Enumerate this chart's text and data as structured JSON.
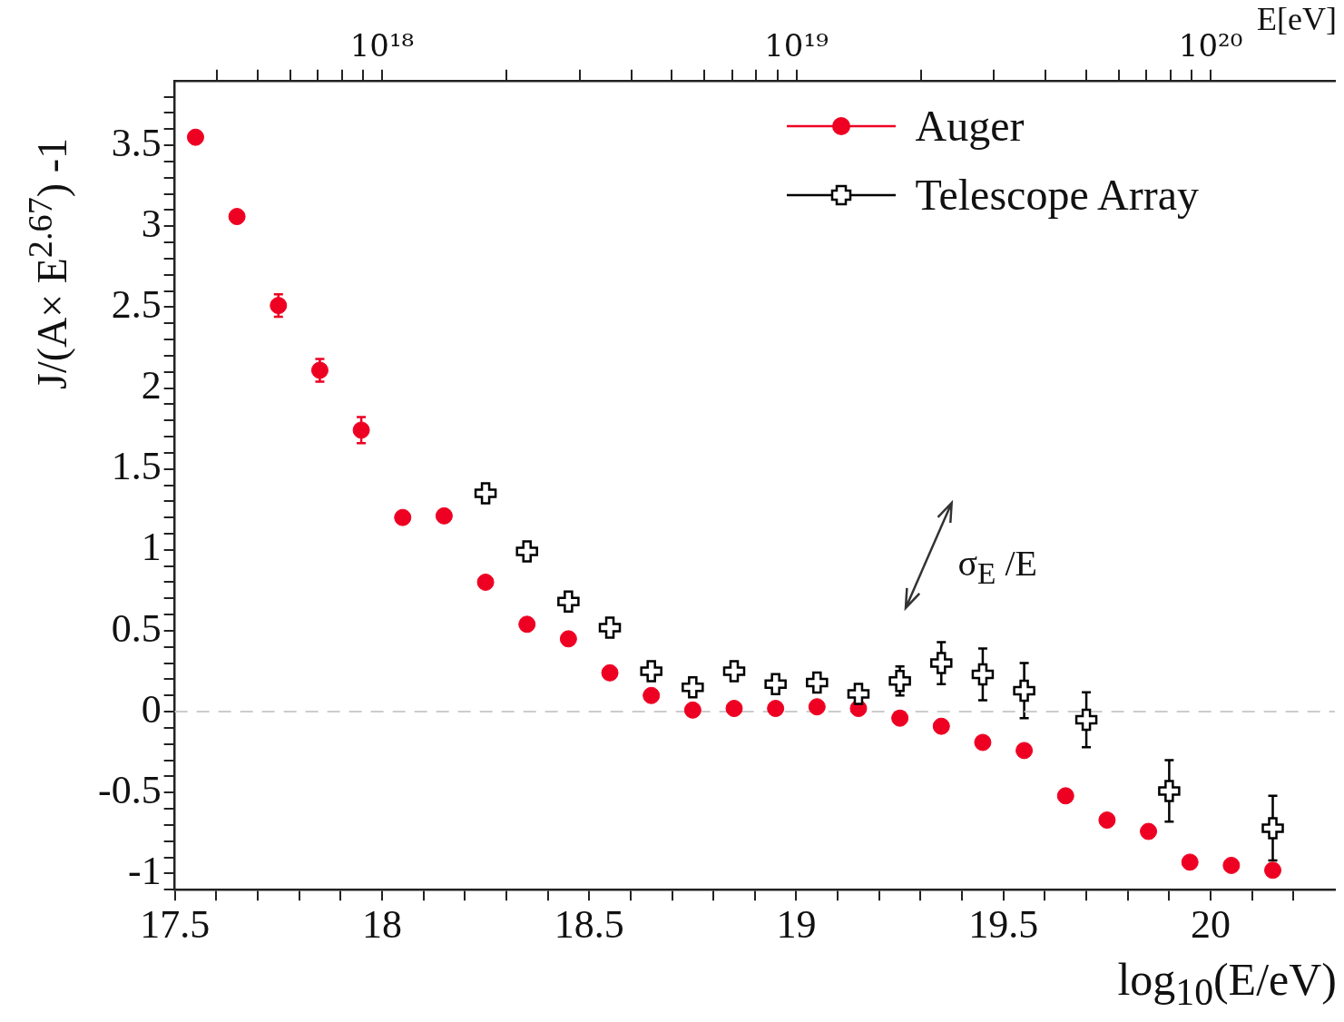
{
  "chart_data": {
    "type": "scatter",
    "xlabel": "log$_{10}$(E/eV)",
    "ylabel": "J/(A× E$^{2.67}$) -1",
    "x2label": "E[eV]",
    "xlim": [
      17.5,
      20.3
    ],
    "ylim": [
      -1.1,
      3.9
    ],
    "x2lim": [
      3.162e+17,
      1.995e+20
    ],
    "log": "x2",
    "xticks": [
      17.5,
      {
        "value": 17.6,
        "label": null
      },
      {
        "value": 17.7,
        "label": null
      },
      {
        "value": 17.8,
        "label": null
      },
      {
        "value": 17.9,
        "label": null
      },
      18,
      {
        "value": 18.1,
        "label": null
      },
      {
        "value": 18.2,
        "label": null
      },
      {
        "value": 18.3,
        "label": null
      },
      {
        "value": 18.4,
        "label": null
      },
      18.5,
      {
        "value": 18.6,
        "label": null
      },
      {
        "value": 18.7,
        "label": null
      },
      {
        "value": 18.8,
        "label": null
      },
      {
        "value": 18.9,
        "label": null
      },
      19,
      {
        "value": 19.1,
        "label": null
      },
      {
        "value": 19.2,
        "label": null
      },
      {
        "value": 19.3,
        "label": null
      },
      {
        "value": 19.4,
        "label": null
      },
      19.5,
      {
        "value": 19.6,
        "label": null
      },
      {
        "value": 19.7,
        "label": null
      },
      {
        "value": 19.8,
        "label": null
      },
      {
        "value": 19.9,
        "label": null
      },
      20,
      {
        "value": 20.1,
        "label": null
      },
      {
        "value": 20.2,
        "label": null
      }
    ],
    "x2ticks": [
      {
        "value": 4e+17,
        "label": null
      },
      {
        "value": 5e+17,
        "label": null
      },
      {
        "value": 6e+17,
        "label": null
      },
      {
        "value": 7e+17,
        "label": null
      },
      {
        "value": 8e+17,
        "label": null
      },
      {
        "value": 9e+17,
        "label": null
      },
      {
        "value": 1e+18,
        "label": "10¹⁸"
      },
      {
        "value": 2e+18,
        "label": null
      },
      {
        "value": 3e+18,
        "label": null
      },
      {
        "value": 4e+18,
        "label": null
      },
      {
        "value": 5e+18,
        "label": null
      },
      {
        "value": 6e+18,
        "label": null
      },
      {
        "value": 7e+18,
        "label": null
      },
      {
        "value": 8e+18,
        "label": null
      },
      {
        "value": 9e+18,
        "label": null
      },
      {
        "value": 1e+19,
        "label": "10¹⁹"
      },
      {
        "value": 2e+19,
        "label": null
      },
      {
        "value": 3e+19,
        "label": null
      },
      {
        "value": 4e+19,
        "label": null
      },
      {
        "value": 5e+19,
        "label": null
      },
      {
        "value": 6e+19,
        "label": null
      },
      {
        "value": 7e+19,
        "label": null
      },
      {
        "value": 8e+19,
        "label": null
      },
      {
        "value": 9e+19,
        "label": null
      },
      {
        "value": 1e+20,
        "label": "10²⁰"
      }
    ],
    "yticks": [
      {
        "value": -1.1,
        "label": null
      },
      -1,
      {
        "value": -0.9,
        "label": null
      },
      {
        "value": -0.8,
        "label": null
      },
      {
        "value": -0.7,
        "label": null
      },
      {
        "value": -0.6,
        "label": null
      },
      -0.5,
      {
        "value": -0.4,
        "label": null
      },
      {
        "value": -0.3,
        "label": null
      },
      {
        "value": -0.2,
        "label": null
      },
      {
        "value": -0.1,
        "label": null
      },
      0,
      {
        "value": 0.1,
        "label": null
      },
      {
        "value": 0.2,
        "label": null
      },
      {
        "value": 0.3,
        "label": null
      },
      {
        "value": 0.4,
        "label": null
      },
      0.5,
      {
        "value": 0.6,
        "label": null
      },
      {
        "value": 0.7,
        "label": null
      },
      {
        "value": 0.8,
        "label": null
      },
      {
        "value": 0.9,
        "label": null
      },
      1,
      {
        "value": 1.1,
        "label": null
      },
      {
        "value": 1.2,
        "label": null
      },
      {
        "value": 1.3,
        "label": null
      },
      {
        "value": 1.4,
        "label": null
      },
      1.5,
      {
        "value": 1.6,
        "label": null
      },
      {
        "value": 1.7,
        "label": null
      },
      {
        "value": 1.8,
        "label": null
      },
      {
        "value": 1.9,
        "label": null
      },
      2,
      {
        "value": 2.1,
        "label": null
      },
      {
        "value": 2.2,
        "label": null
      },
      {
        "value": 2.3,
        "label": null
      },
      {
        "value": 2.4,
        "label": null
      },
      2.5,
      {
        "value": 2.6,
        "label": null
      },
      {
        "value": 2.7,
        "label": null
      },
      {
        "value": 2.8,
        "label": null
      },
      {
        "value": 2.9,
        "label": null
      },
      3,
      {
        "value": 3.1,
        "label": null
      },
      {
        "value": 3.2,
        "label": null
      },
      {
        "value": 3.3,
        "label": null
      },
      {
        "value": 3.4,
        "label": null
      },
      3.5,
      {
        "value": 3.6,
        "label": null
      },
      {
        "value": 3.7,
        "label": null
      },
      {
        "value": 3.8,
        "label": null
      }
    ],
    "grid": false,
    "legend": "top right",
    "series": [
      {
        "name": "Auger",
        "color": "#ee0022",
        "marker": "circle",
        "x": [
          17.55,
          17.65,
          17.75,
          17.85,
          17.95,
          18.05,
          18.15,
          18.25,
          18.35,
          18.45,
          18.55,
          18.65,
          18.75,
          18.85,
          18.95,
          19.05,
          19.15,
          19.25,
          19.35,
          19.45,
          19.55,
          19.65,
          19.75,
          19.85,
          19.95,
          20.05,
          20.15
        ],
        "values": [
          3.55,
          3.06,
          2.51,
          2.11,
          1.74,
          1.2,
          1.21,
          0.8,
          0.54,
          0.45,
          0.24,
          0.1,
          0.01,
          0.02,
          0.02,
          0.03,
          0.02,
          -0.04,
          -0.09,
          -0.19,
          -0.24,
          -0.52,
          -0.67,
          -0.74,
          -0.93,
          -0.95,
          -0.98
        ],
        "errors": [
          null,
          null,
          0.07,
          0.07,
          0.08,
          null,
          null,
          null,
          null,
          null,
          null,
          null,
          null,
          null,
          null,
          null,
          null,
          null,
          null,
          null,
          null,
          null,
          null,
          null,
          null,
          null,
          null
        ]
      },
      {
        "name": "Telescope Array",
        "color": "#000000",
        "marker": "cross",
        "x": [
          18.25,
          18.35,
          18.45,
          18.55,
          18.65,
          18.75,
          18.85,
          18.95,
          19.05,
          19.15,
          19.25,
          19.35,
          19.45,
          19.55,
          19.7,
          19.9,
          20.15
        ],
        "values": [
          1.35,
          0.99,
          0.68,
          0.52,
          0.25,
          0.15,
          0.25,
          0.17,
          0.18,
          0.11,
          0.19,
          0.3,
          0.23,
          0.13,
          -0.05,
          -0.49,
          -0.72
        ],
        "errors": [
          0.05,
          null,
          null,
          null,
          null,
          null,
          null,
          null,
          null,
          0.05,
          0.09,
          0.13,
          0.16,
          0.17,
          0.17,
          0.19,
          0.2
        ]
      }
    ],
    "ref_lines": [
      {
        "axis": "y",
        "value": 0,
        "color": "#cccccc",
        "line_style": "dashed"
      }
    ],
    "annotations": [
      "σ$_{E}$ /E"
    ]
  }
}
